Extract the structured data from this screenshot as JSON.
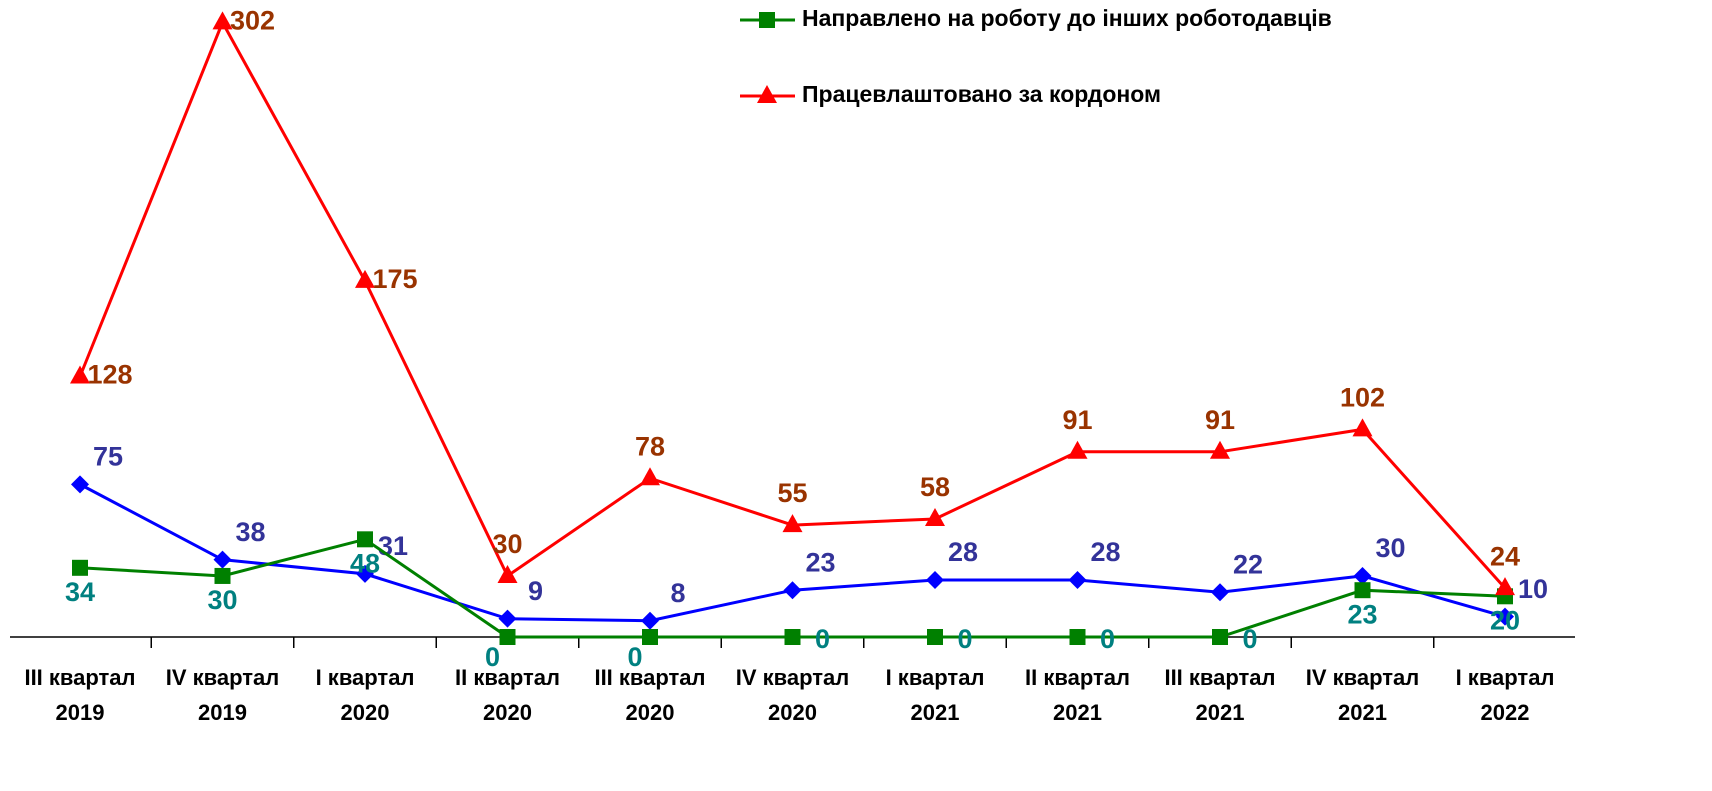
{
  "chart_data": {
    "type": "line",
    "categories": [
      [
        "III квартал",
        "2019"
      ],
      [
        "IV квартал",
        "2019"
      ],
      [
        "I квартал",
        "2020"
      ],
      [
        "II квартал",
        "2020"
      ],
      [
        "III квартал",
        "2020"
      ],
      [
        "IV квартал",
        "2020"
      ],
      [
        "I квартал",
        "2021"
      ],
      [
        "II квартал",
        "2021"
      ],
      [
        "III квартал",
        "2021"
      ],
      [
        "IV квартал",
        "2021"
      ],
      [
        "I квартал",
        "2022"
      ]
    ],
    "series": [
      {
        "color": "#0000ff",
        "label_color": "#333399",
        "marker": "diamond",
        "values": [
          75,
          38,
          31,
          9,
          8,
          23,
          28,
          28,
          22,
          30,
          10
        ]
      },
      {
        "name": "Направлено на роботу до інших роботодавців",
        "color": "#008000",
        "label_color": "#008080",
        "marker": "square",
        "values": [
          34,
          30,
          48,
          0,
          0,
          0,
          0,
          0,
          0,
          23,
          20
        ]
      },
      {
        "name": "Працевлаштовано за кордоном",
        "color": "#ff0000",
        "label_color": "#993300",
        "marker": "triangle",
        "values": [
          128,
          302,
          175,
          30,
          78,
          55,
          58,
          91,
          91,
          102,
          24
        ]
      }
    ],
    "ylim": [
      0,
      313
    ],
    "legend": "top-right"
  }
}
